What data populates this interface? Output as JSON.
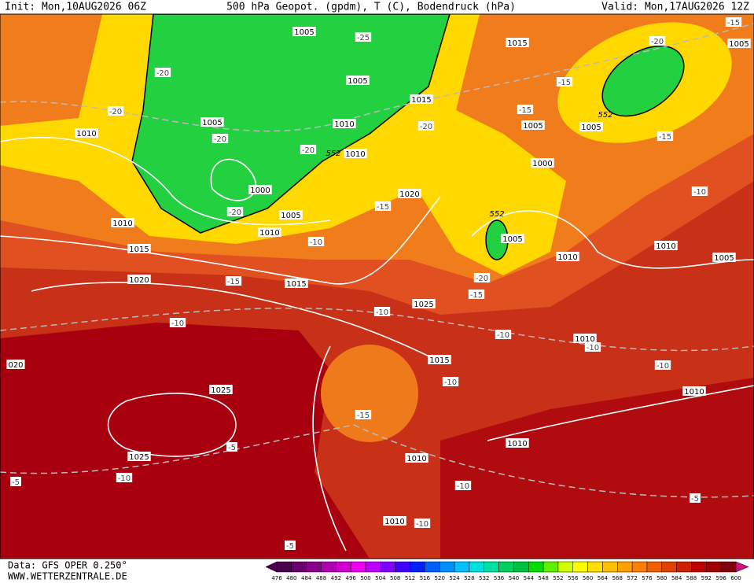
{
  "header": {
    "init": "Init: Mon,10AUG2026 06Z",
    "title": "500 hPa Geopot. (gpdm), T (C), Bodendruck (hPa)",
    "valid": "Valid: Mon,17AUG2026 12Z"
  },
  "footer": {
    "source": "Data: GFS OPER 0.250°",
    "site": "WWW.WETTERZENTRALE.DE"
  },
  "colorbar": {
    "labels": [
      476,
      480,
      484,
      488,
      492,
      496,
      500,
      504,
      508,
      512,
      516,
      520,
      524,
      528,
      532,
      536,
      540,
      544,
      548,
      552,
      556,
      560,
      564,
      568,
      572,
      576,
      580,
      584,
      588,
      592,
      596,
      600
    ],
    "colors": [
      "#4b0050",
      "#6a006e",
      "#8b008b",
      "#b000b0",
      "#d000d0",
      "#f000f0",
      "#c000ff",
      "#8000ff",
      "#4000ff",
      "#0020ff",
      "#0060ff",
      "#0090ff",
      "#00c0ff",
      "#00e0e0",
      "#00e0a0",
      "#00d060",
      "#00c040",
      "#00e000",
      "#60f000",
      "#d0ff00",
      "#ffff00",
      "#ffe000",
      "#ffc000",
      "#ffa000",
      "#ff8000",
      "#f06000",
      "#e04000",
      "#d02000",
      "#c00000",
      "#a00000",
      "#800010"
    ]
  },
  "map_labels": {
    "isobars": [
      1005,
      1005,
      1005,
      1010,
      1010,
      1000,
      1005,
      1010,
      1010,
      1010,
      1015,
      1020,
      1015,
      1020,
      1015,
      1015,
      1005,
      1005,
      1005,
      1000,
      1005,
      1010,
      1010,
      1005,
      1025,
      1010,
      1015,
      1010,
      1025,
      1025,
      1010,
      1010,
      1010,
      "020"
    ],
    "temperatures": [
      -25,
      -20,
      -20,
      -20,
      -20,
      -20,
      -20,
      -20,
      -15,
      -15,
      -15,
      -15,
      -15,
      -10,
      -15,
      -10,
      -10,
      -15,
      -20,
      -10,
      -10,
      -10,
      -10,
      -10,
      -15,
      -5,
      -10,
      -5,
      -10,
      -10,
      -5,
      -5
    ],
    "heights": [
      552,
      552,
      552
    ]
  }
}
